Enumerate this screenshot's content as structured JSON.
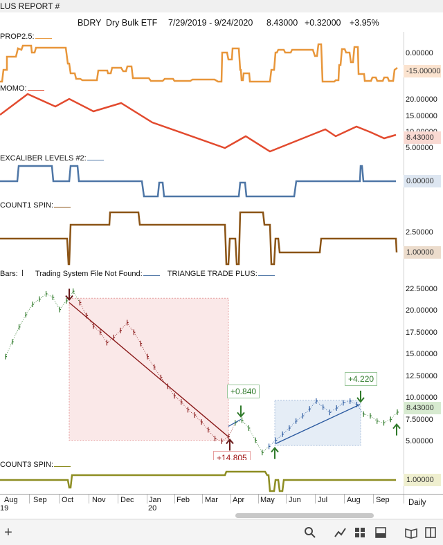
{
  "window": {
    "title": "LUS REPORT #"
  },
  "header": {
    "symbol": "BDRY",
    "name": "Dry Bulk ETF",
    "range": "7/29/2019 - 9/24/2020",
    "price": "8.43000",
    "change": "+0.32000",
    "pct": "+3.95%"
  },
  "panes": {
    "prop": {
      "label": "PROP2.5:",
      "ticks": [
        "0.00000"
      ],
      "badge": "-15.00000",
      "badge_color": "#e69a3a",
      "line_color": "#e8963a"
    },
    "momo": {
      "label": "MOMO:",
      "ticks": [
        "20.00000",
        "15.00000",
        "10.00000",
        "5.00000"
      ],
      "badge": "8.43000",
      "badge_color": "#e24a2e",
      "line_color": "#e24a2e"
    },
    "excal": {
      "label": "EXCALIBER LEVELS #2:",
      "ticks": [],
      "badge": "0.00000",
      "badge_color": "#5b7fa8",
      "line_color": "#4e76a6"
    },
    "count1": {
      "label": "COUNT1 SPIN:",
      "ticks": [
        "2.50000"
      ],
      "badge": "1.00000",
      "badge_color": "#8b5a2b",
      "line_color": "#8b5416"
    },
    "price": {
      "label_bars": "Bars:",
      "label_sys": "Trading System File Not Found:",
      "label_tri": "TRIANGLE TRADE PLUS:",
      "ticks": [
        "22.50000",
        "20.00000",
        "17.50000",
        "15.00000",
        "12.50000",
        "10.00000",
        "7.50000",
        "5.00000"
      ],
      "badge": "8.43000",
      "badge_color": "#4a8a3a"
    },
    "count3": {
      "label": "COUNT3 SPIN:",
      "ticks": [],
      "badge": "1.00000",
      "badge_color": "#8a8a1e",
      "line_color": "#8d8d22"
    }
  },
  "callouts": {
    "short": "+14.805",
    "long1": "+0.840",
    "long2": "+4.220"
  },
  "xaxis": {
    "months": [
      "Aug",
      "Sep",
      "Oct",
      "Nov",
      "Dec",
      "Jan",
      "Feb",
      "Mar",
      "Apr",
      "May",
      "Jun",
      "Jul",
      "Aug",
      "Sep"
    ],
    "years": [
      "19",
      "20"
    ],
    "period": "Daily"
  },
  "toolbar": {
    "icons": [
      "plus-icon",
      "search-icon",
      "chart-line-icon",
      "grid-icon",
      "layout-icon",
      "book-icon",
      "expand-icon"
    ]
  },
  "chart_data": {
    "type": "line",
    "ylim": [
      3.5,
      23.5
    ],
    "price_series": [
      {
        "name": "BDRY",
        "values": [
          14.8,
          16.5,
          18.2,
          19.6,
          20.8,
          21.4,
          22.0,
          21.6,
          20.2,
          21.2,
          22.3,
          21.0,
          19.5,
          18.3,
          17.6,
          16.4,
          17.0,
          17.8,
          18.7,
          17.6,
          16.3,
          14.8,
          13.6,
          12.4,
          11.4,
          10.3,
          9.6,
          8.7,
          8.1,
          7.3,
          6.4,
          5.4,
          5.1,
          5.6,
          7.2,
          7.5,
          6.6,
          5.2,
          3.8,
          4.5,
          5.2,
          5.9,
          6.6,
          7.4,
          8.0,
          8.8,
          9.7,
          9.0,
          8.4,
          8.9,
          9.5,
          9.7,
          9.3,
          8.2,
          8.0,
          7.4,
          7.2,
          7.6,
          8.43
        ]
      }
    ],
    "trades": [
      {
        "direction": "short",
        "entry": 21.0,
        "exit": 5.6,
        "result": "+14.805"
      },
      {
        "direction": "long",
        "entry": 6.8,
        "exit": 7.6,
        "result": "+0.840"
      },
      {
        "direction": "long",
        "entry": 4.8,
        "exit": 9.3,
        "result": "+4.220"
      }
    ]
  }
}
